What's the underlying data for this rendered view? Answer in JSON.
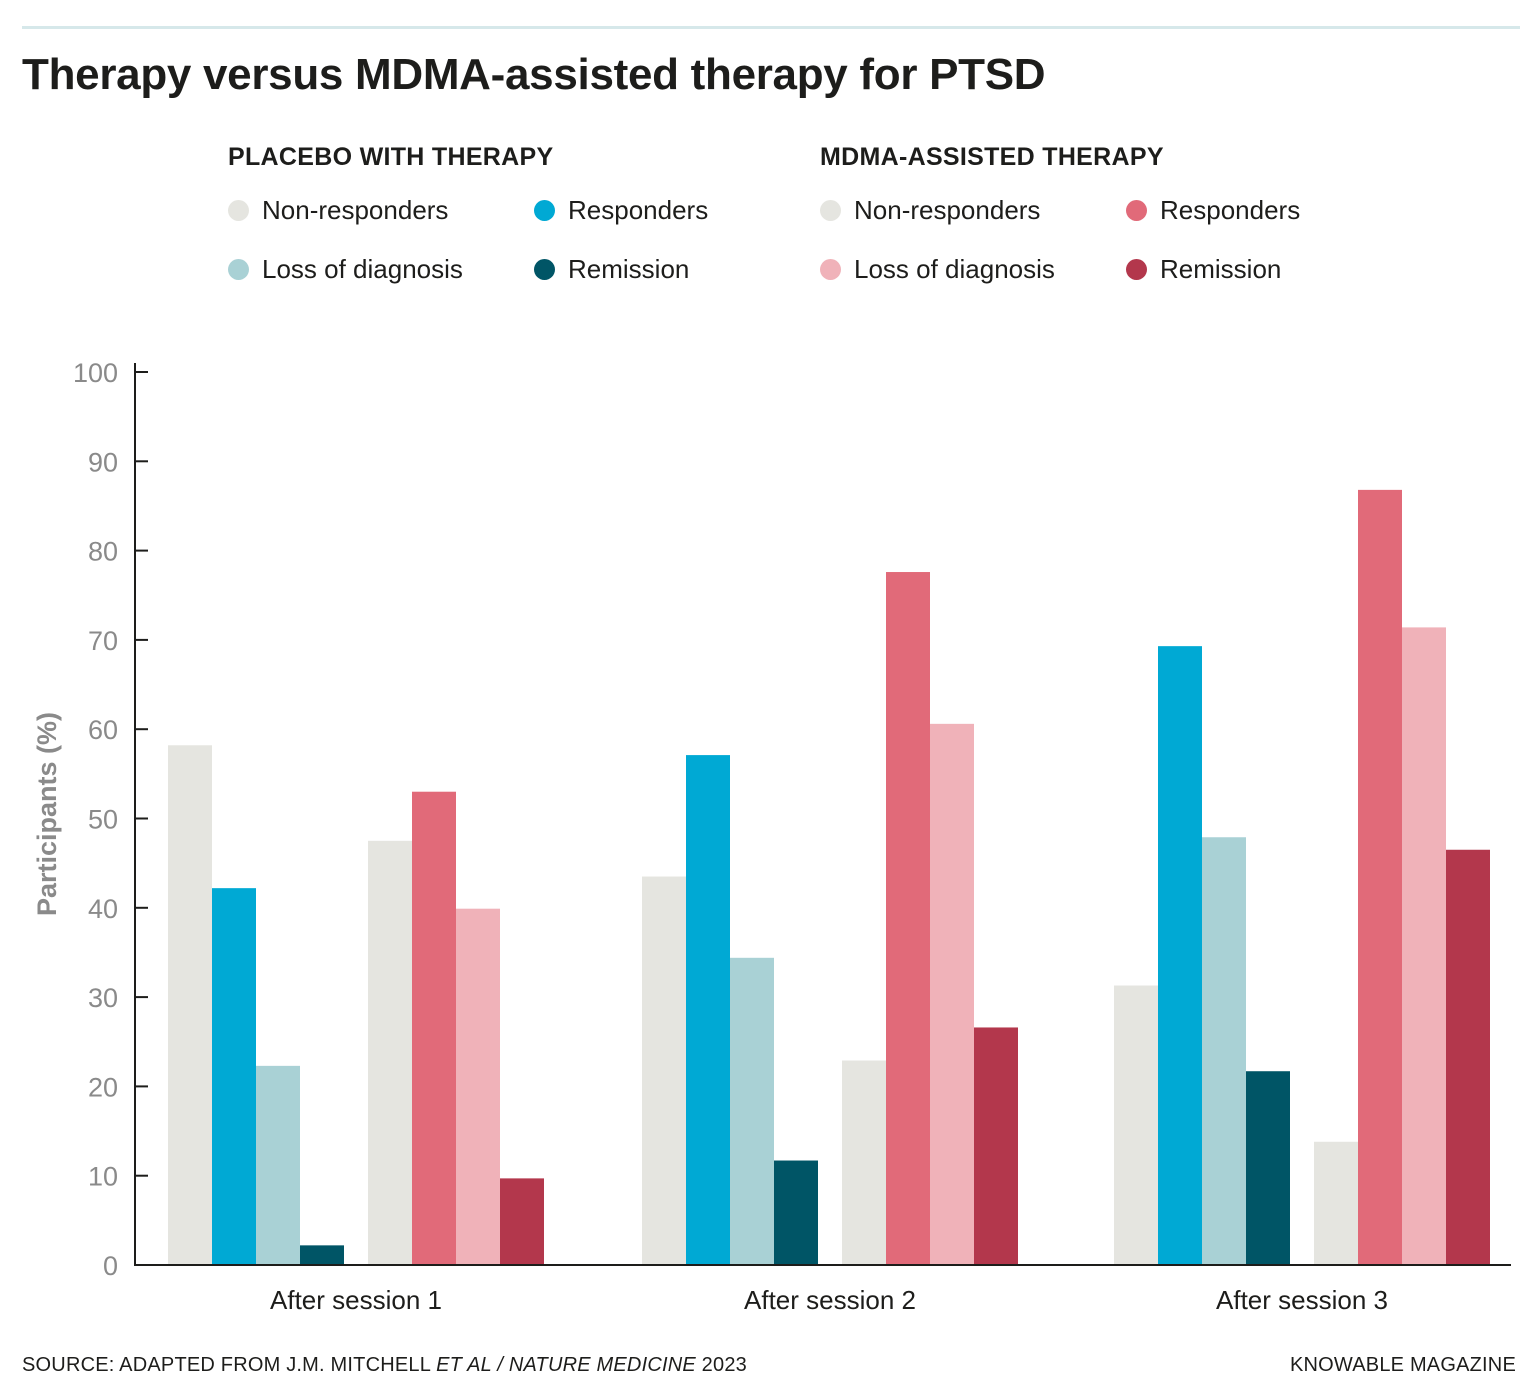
{
  "title": "Therapy versus MDMA-assisted therapy for PTSD",
  "legend": {
    "placebo": {
      "heading": "PLACEBO WITH THERAPY",
      "items": [
        {
          "label": "Non-responders",
          "color": "#e5e5e0"
        },
        {
          "label": "Responders",
          "color": "#00a9d4"
        },
        {
          "label": "Loss of diagnosis",
          "color": "#a9d1d5"
        },
        {
          "label": "Remission",
          "color": "#005566"
        }
      ]
    },
    "mdma": {
      "heading": "MDMA-ASSISTED THERAPY",
      "items": [
        {
          "label": "Non-responders",
          "color": "#e5e5e0"
        },
        {
          "label": "Responders",
          "color": "#e16a79"
        },
        {
          "label": "Loss of diagnosis",
          "color": "#f0b2b9"
        },
        {
          "label": "Remission",
          "color": "#b3374c"
        }
      ]
    }
  },
  "chart_data": {
    "type": "bar",
    "title": "Therapy versus MDMA-assisted therapy for PTSD",
    "xlabel": "",
    "ylabel": "Participants (%)",
    "ylim": [
      0,
      100
    ],
    "yticks": [
      0,
      10,
      20,
      30,
      40,
      50,
      60,
      70,
      80,
      90,
      100
    ],
    "grid": false,
    "categories": [
      "After session 1",
      "After session 2",
      "After session 3"
    ],
    "series": [
      {
        "name": "Placebo with therapy: Non-responders",
        "color": "#e5e5e0",
        "values": [
          58.2,
          43.5,
          31.3
        ]
      },
      {
        "name": "Placebo with therapy: Responders",
        "color": "#00a9d4",
        "values": [
          42.2,
          57.1,
          69.3
        ]
      },
      {
        "name": "Placebo with therapy: Loss of diagnosis",
        "color": "#a9d1d5",
        "values": [
          22.3,
          34.4,
          47.9
        ]
      },
      {
        "name": "Placebo with therapy: Remission",
        "color": "#005566",
        "values": [
          2.2,
          11.7,
          21.7
        ]
      },
      {
        "name": "MDMA-assisted therapy: Non-responders",
        "color": "#e5e5e0",
        "values": [
          47.5,
          22.9,
          13.8
        ]
      },
      {
        "name": "MDMA-assisted therapy: Responders",
        "color": "#e16a79",
        "values": [
          53.0,
          77.6,
          86.8
        ]
      },
      {
        "name": "MDMA-assisted therapy: Loss of diagnosis",
        "color": "#f0b2b9",
        "values": [
          39.9,
          60.6,
          71.4
        ]
      },
      {
        "name": "MDMA-assisted therapy: Remission",
        "color": "#b3374c",
        "values": [
          9.7,
          26.6,
          46.5
        ]
      }
    ]
  },
  "footer": {
    "source_prefix": "SOURCE: ADAPTED FROM J.M. MITCHELL ",
    "source_italic": "ET AL / NATURE MEDICINE",
    "source_suffix": " 2023",
    "credit": "KNOWABLE MAGAZINE"
  }
}
